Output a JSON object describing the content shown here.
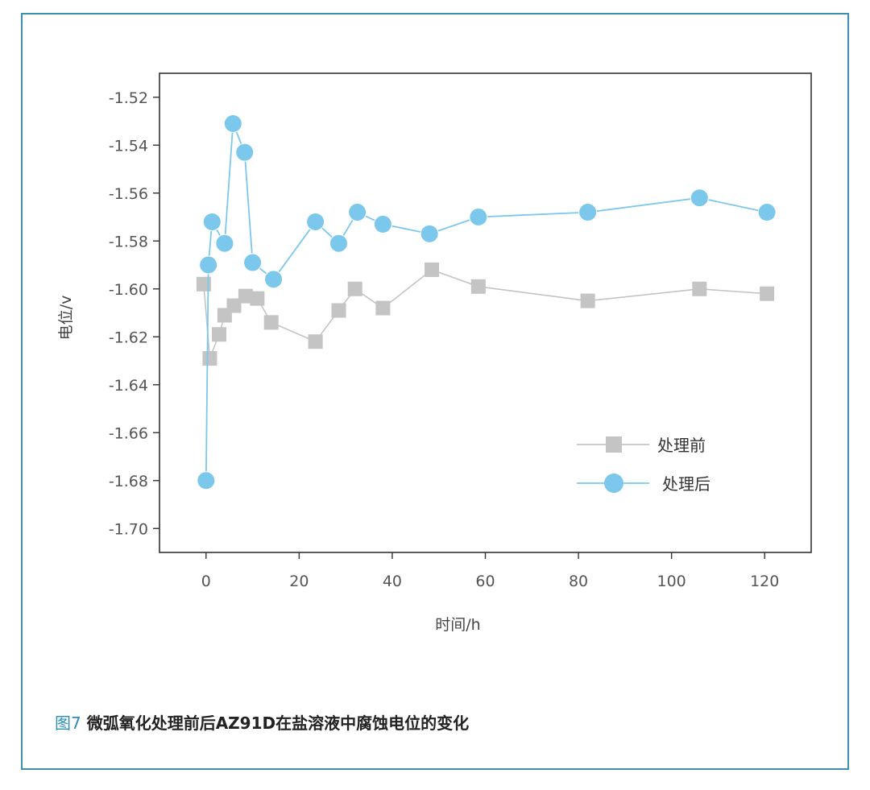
{
  "caption": {
    "figure_number": "图7",
    "text": " 微弧氧化处理前后AZ91D在盐溶液中腐蚀电位的变化"
  },
  "colors": {
    "frame": "#3d8fb0",
    "series_before": "#c4c4c4",
    "series_after": "#7cc8ec",
    "axis": "#333333"
  },
  "chart_data": {
    "type": "line",
    "title": "",
    "xlabel": "时间/h",
    "ylabel": "电位/v",
    "xlim": [
      -10,
      130
    ],
    "ylim": [
      -1.71,
      -1.51
    ],
    "xticks": [
      0,
      20,
      40,
      60,
      80,
      100,
      120
    ],
    "xtick_labels": [
      "0",
      "20",
      "40",
      "60",
      "80",
      "100",
      "120"
    ],
    "yticks": [
      -1.52,
      -1.54,
      -1.56,
      -1.58,
      -1.6,
      -1.62,
      -1.64,
      -1.66,
      -1.68,
      -1.7
    ],
    "ytick_labels": [
      "-1.52",
      "-1.54",
      "-1.56",
      "-1.58",
      "-1.60",
      "-1.62",
      "-1.64",
      "-1.66",
      "-1.68",
      "-1.70"
    ],
    "grid": false,
    "legend_position": "bottom-right",
    "series": [
      {
        "name": "处理前",
        "marker": "square",
        "color": "#c4c4c4",
        "x": [
          -0.5,
          0.8,
          2.8,
          4,
          6,
          8.5,
          11,
          14,
          23.5,
          28.5,
          32,
          38,
          48.5,
          58.5,
          82,
          106,
          120.5
        ],
        "y": [
          -1.598,
          -1.629,
          -1.619,
          -1.611,
          -1.607,
          -1.603,
          -1.604,
          -1.614,
          -1.622,
          -1.609,
          -1.6,
          -1.608,
          -1.592,
          -1.599,
          -1.605,
          -1.6,
          -1.602
        ]
      },
      {
        "name": "处理后",
        "marker": "circle",
        "color": "#7cc8ec",
        "x": [
          0,
          0.5,
          1.3,
          4,
          5.8,
          8.3,
          10,
          14.5,
          23.5,
          28.5,
          32.5,
          38,
          48,
          58.5,
          82,
          106,
          120.5
        ],
        "y": [
          -1.68,
          -1.59,
          -1.572,
          -1.581,
          -1.531,
          -1.543,
          -1.589,
          -1.596,
          -1.572,
          -1.581,
          -1.568,
          -1.573,
          -1.577,
          -1.57,
          -1.568,
          -1.562,
          -1.568
        ]
      }
    ]
  }
}
